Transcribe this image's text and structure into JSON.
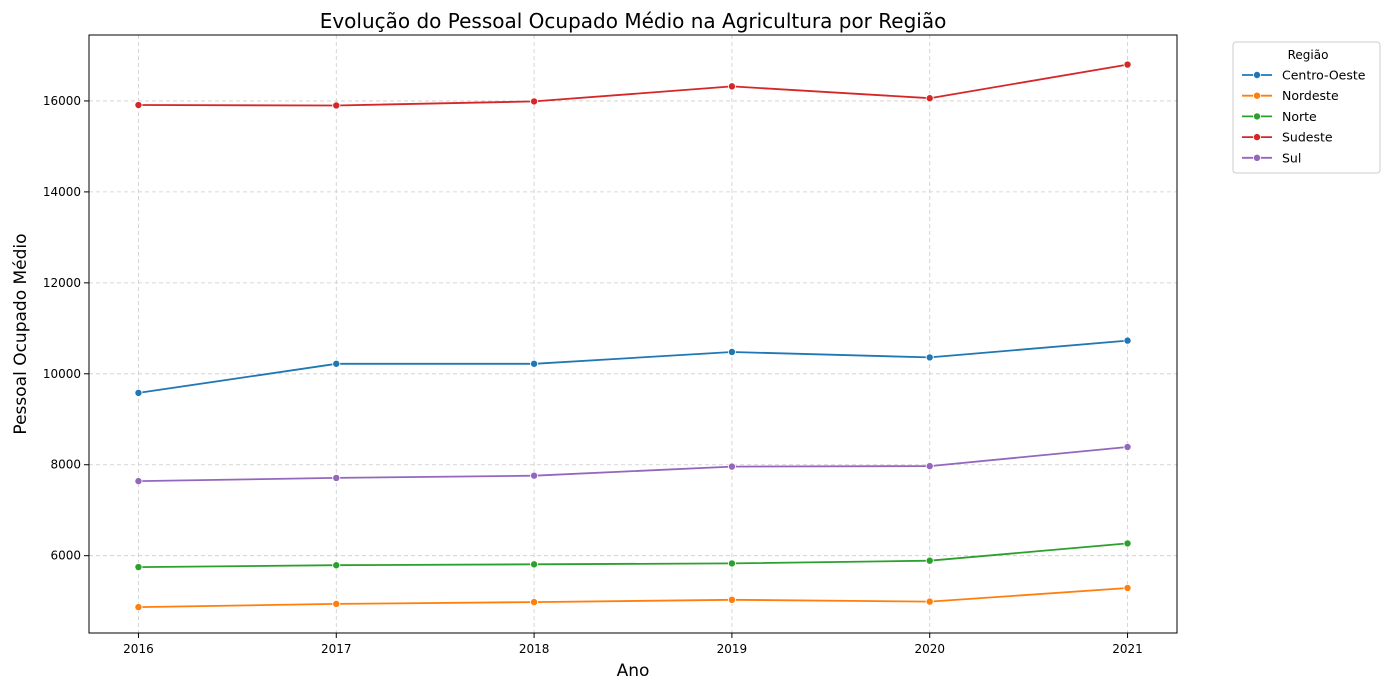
{
  "chart_data": {
    "type": "line",
    "title": "Evolução do Pessoal Ocupado Médio na Agricultura por Região",
    "xlabel": "Ano",
    "ylabel": "Pessoal Ocupado Médio",
    "x": [
      2016,
      2017,
      2018,
      2019,
      2020,
      2021
    ],
    "x_tick_labels": [
      "2016",
      "2017",
      "2018",
      "2019",
      "2020",
      "2021"
    ],
    "y_ticks": [
      6000,
      8000,
      10000,
      12000,
      14000,
      16000
    ],
    "y_tick_labels": [
      "6000",
      "8000",
      "10000",
      "12000",
      "14000",
      "16000"
    ],
    "xlim": [
      2015.75,
      2021.25
    ],
    "ylim": [
      4300,
      17450
    ],
    "grid": true,
    "legend": {
      "title": "Região",
      "placement": "outside-top-right"
    },
    "series": [
      {
        "name": "Centro-Oeste",
        "color": "#1f77b4",
        "values": [
          9580,
          10220,
          10220,
          10480,
          10360,
          10730
        ]
      },
      {
        "name": "Nordeste",
        "color": "#ff7f0e",
        "values": [
          4870,
          4940,
          4980,
          5030,
          4990,
          5290
        ]
      },
      {
        "name": "Norte",
        "color": "#2ca02c",
        "values": [
          5750,
          5790,
          5810,
          5830,
          5890,
          6270
        ]
      },
      {
        "name": "Sudeste",
        "color": "#d62728",
        "values": [
          15910,
          15900,
          15990,
          16320,
          16060,
          16800
        ]
      },
      {
        "name": "Sul",
        "color": "#9467bd",
        "values": [
          7640,
          7710,
          7760,
          7960,
          7970,
          8390
        ]
      }
    ]
  }
}
